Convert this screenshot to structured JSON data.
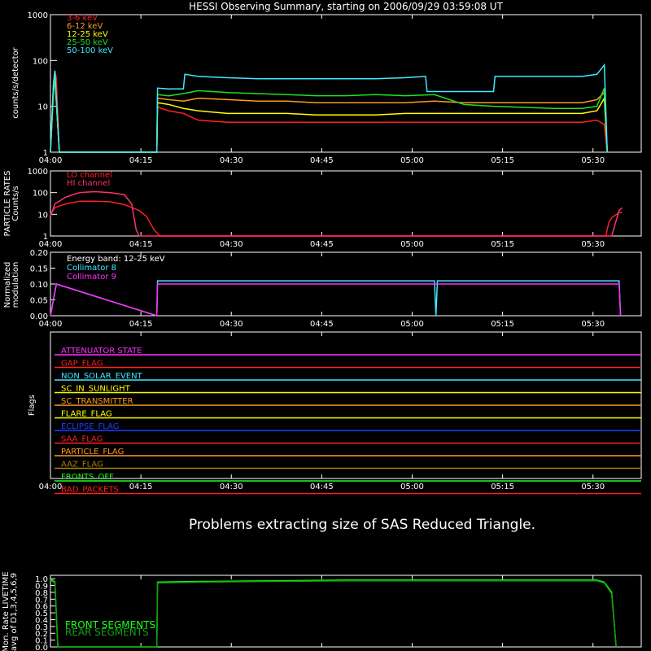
{
  "title": "HESSI Observing Summary, starting on 2006/09/29 03:59:08 UT",
  "message": "Problems extracting size of SAS Reduced Triangle.",
  "time_axis": {
    "ticks": [
      "04:00",
      "04:15",
      "04:30",
      "04:45",
      "05:00",
      "05:15",
      "05:30"
    ],
    "start_minute": 0,
    "end_minute": 40
  },
  "chart_data": [
    {
      "type": "line",
      "panel": "count_rates",
      "ylabel": "counts/s/detector",
      "yscale": "log",
      "ylim": [
        1,
        1000
      ],
      "yticks": [
        "1",
        "10",
        "100",
        "1000"
      ],
      "series": [
        {
          "name": "3-6 keV",
          "color": "#ff2020",
          "x": [
            0,
            0.2,
            0.3,
            0.4,
            0.6,
            7.2,
            7.25,
            7.5,
            8,
            9,
            10,
            12,
            14,
            16,
            18,
            20,
            22,
            24,
            26,
            28,
            30,
            32,
            34,
            36,
            37,
            37.5,
            37.7
          ],
          "y": [
            1,
            30,
            60,
            40,
            1,
            1,
            10,
            9,
            8,
            7,
            5,
            4.5,
            4.5,
            4.5,
            4.5,
            4.5,
            4.5,
            4.5,
            4.5,
            4.5,
            4.5,
            4.5,
            4.5,
            4.5,
            5,
            4,
            1
          ]
        },
        {
          "name": "6-12 keV",
          "color": "#ff9a20",
          "x": [
            0,
            0.2,
            0.3,
            0.6,
            7.2,
            7.25,
            8,
            9,
            10,
            12,
            14,
            16,
            18,
            20,
            22,
            24,
            26,
            28,
            30,
            32,
            34,
            36,
            37,
            37.5,
            37.7
          ],
          "y": [
            1,
            25,
            50,
            1,
            1,
            15,
            14,
            13,
            15,
            14,
            13,
            13,
            12,
            12,
            12,
            12,
            13,
            12,
            12,
            12,
            12,
            12,
            14,
            20,
            1
          ]
        },
        {
          "name": "12-25 keV",
          "color": "#ffff00",
          "x": [
            0,
            0.2,
            0.3,
            0.6,
            7.2,
            7.25,
            8,
            9,
            10,
            12,
            14,
            16,
            18,
            20,
            22,
            24,
            26,
            28,
            30,
            32,
            34,
            36,
            37,
            37.5,
            37.7
          ],
          "y": [
            1,
            20,
            40,
            1,
            1,
            12,
            11,
            9,
            8,
            7,
            7,
            7,
            6.5,
            6.5,
            6.5,
            7,
            7,
            7,
            7,
            7,
            7,
            7,
            8,
            15,
            1
          ]
        },
        {
          "name": "25-50 keV",
          "color": "#20e020",
          "x": [
            0,
            0.2,
            0.3,
            0.6,
            7.2,
            7.25,
            8,
            9,
            10,
            12,
            14,
            16,
            18,
            20,
            22,
            24,
            26,
            28,
            30,
            32,
            34,
            36,
            37,
            37.5,
            37.7
          ],
          "y": [
            1,
            20,
            45,
            1,
            1,
            18,
            17,
            19,
            22,
            20,
            19,
            18,
            17,
            17,
            18,
            17,
            18,
            11,
            10,
            9.5,
            9,
            9,
            10,
            25,
            1
          ]
        },
        {
          "name": "50-100 keV",
          "color": "#40e8ff",
          "x": [
            0,
            0.2,
            0.3,
            0.6,
            7.2,
            7.25,
            8,
            9,
            9.1,
            10,
            12,
            14,
            16,
            18,
            20,
            22,
            24,
            25.4,
            25.5,
            30,
            30.1,
            32,
            34,
            36,
            37,
            37.5,
            37.7
          ],
          "y": [
            1,
            30,
            60,
            1,
            1,
            25,
            24,
            24,
            50,
            45,
            42,
            40,
            40,
            40,
            40,
            40,
            42,
            45,
            21,
            21,
            45,
            45,
            45,
            45,
            50,
            80,
            1
          ]
        }
      ]
    },
    {
      "type": "line",
      "panel": "particle_rates",
      "ylabel": "PARTICLE RATES Counts/s",
      "yscale": "log",
      "ylim": [
        1,
        1000
      ],
      "yticks": [
        "1",
        "10",
        "100",
        "1000"
      ],
      "series": [
        {
          "name": "LO channel",
          "color": "#ff2020",
          "x": [
            0,
            0.3,
            1,
            2,
            3,
            4,
            5,
            6,
            6.5,
            7,
            7.4,
            7.6,
            37.6,
            37.8,
            38,
            38.5,
            38.7
          ],
          "y": [
            10,
            20,
            30,
            40,
            40,
            38,
            28,
            15,
            8,
            2,
            1,
            1,
            1,
            4,
            7,
            12,
            12
          ]
        },
        {
          "name": "HI channel",
          "color": "#ff3070",
          "x": [
            0,
            0.3,
            1,
            1.5,
            2,
            3,
            4,
            4.5,
            5,
            5.5,
            5.8,
            6,
            38,
            38.5,
            38.7
          ],
          "y": [
            8,
            30,
            60,
            80,
            100,
            110,
            100,
            90,
            80,
            30,
            2,
            1,
            1,
            15,
            20
          ]
        }
      ]
    },
    {
      "type": "line",
      "panel": "modulation",
      "ylabel": "Normalized modulation",
      "ylim": [
        0,
        0.2
      ],
      "yticks": [
        "0.00",
        "0.05",
        "0.10",
        "0.15",
        "0.20"
      ],
      "annotation": "Energy band: 12-25 keV",
      "series": [
        {
          "name": "Collimator 8",
          "color": "#40e8ff",
          "x": [
            0,
            0.4,
            7.2,
            7.25,
            10,
            15,
            20,
            25,
            26,
            26.1,
            26.2,
            30,
            35,
            38.5,
            38.6
          ],
          "y": [
            0,
            0.1,
            0,
            0.11,
            0.11,
            0.11,
            0.11,
            0.11,
            0.11,
            0,
            0.11,
            0.11,
            0.11,
            0.11,
            0
          ]
        },
        {
          "name": "Collimator 9",
          "color": "#ff30ff",
          "x": [
            0,
            0.4,
            7.2,
            7.25,
            10,
            15,
            20,
            25,
            30,
            35,
            38.5,
            38.6
          ],
          "y": [
            0,
            0.1,
            0,
            0.1,
            0.1,
            0.1,
            0.1,
            0.1,
            0.1,
            0.1,
            0.1,
            0
          ]
        }
      ]
    },
    {
      "type": "line",
      "panel": "flags",
      "ylabel": "Flags",
      "series": [
        {
          "name": "ATTENUATOR STATE",
          "color": "#ff30ff",
          "x": [
            0,
            38.7
          ],
          "y": [
            0,
            0
          ]
        },
        {
          "name": "SAA_FLAG",
          "color": "#ff2020",
          "x": [
            0,
            9,
            9.01,
            38.7
          ],
          "y": [
            1,
            1,
            0,
            0
          ]
        },
        {
          "name": "PARTICLE_FLAG",
          "color": "#ff9a20",
          "x": [
            0,
            9.3,
            9.31,
            38.2,
            38.21,
            38.7
          ],
          "y": [
            1,
            1,
            0,
            0,
            1,
            1
          ]
        },
        {
          "name": "ECLIPSE_FLAG",
          "color": "#2040ff",
          "x": [
            0,
            5.5,
            5.51,
            25,
            25.01,
            38.7
          ],
          "y": [
            1,
            1,
            0,
            0,
            1,
            1
          ]
        },
        {
          "name": "SC_TRANSMITTER",
          "color": "#ff9a20",
          "x": [
            0,
            25,
            25.01,
            26,
            26.01,
            26.2,
            26.21,
            28,
            28.01,
            38.7
          ],
          "y": [
            0,
            0,
            1,
            1,
            0,
            0,
            1,
            1,
            0,
            0
          ]
        },
        {
          "name": "SC_IN_SUNLIGHT",
          "color": "#ffff00",
          "x": [
            0,
            5.3,
            5.31,
            25,
            25.01,
            38.7
          ],
          "y": [
            0,
            0,
            1,
            1,
            0,
            0
          ]
        },
        {
          "name": "GAP_FLAG",
          "color": "#ff2020",
          "x": [
            0,
            9.8,
            9.81,
            38.5,
            38.51,
            38.7
          ],
          "y": [
            1,
            1,
            0,
            0,
            1,
            1
          ]
        }
      ]
    },
    {
      "type": "line",
      "panel": "livetime",
      "ylabel": "Mon. Rate LIVETIME avg of D1,3,4,5,6,9",
      "ylim": [
        0,
        1.05
      ],
      "yticks": [
        "0.0",
        "0.1",
        "0.2",
        "0.3",
        "0.4",
        "0.5",
        "0.6",
        "0.7",
        "0.8",
        "0.9",
        "1.0"
      ],
      "series": [
        {
          "name": "FRONT SEGMENTS",
          "color": "#20ff20",
          "x": [
            0,
            0.3,
            0.5,
            7.2,
            7.25,
            10,
            15,
            20,
            25,
            30,
            35,
            37,
            37.5,
            38,
            38.3
          ],
          "y": [
            1,
            0.95,
            0,
            0,
            0.95,
            0.96,
            0.97,
            0.98,
            0.98,
            0.98,
            0.98,
            0.98,
            0.95,
            0.8,
            0
          ]
        },
        {
          "name": "REAR SEGMENTS",
          "color": "#10a010",
          "x": [
            0,
            0.3,
            0.5,
            7.2,
            7.25,
            10,
            15,
            20,
            25,
            30,
            35,
            37,
            37.5,
            38,
            38.3
          ],
          "y": [
            0.98,
            0.94,
            0,
            0,
            0.94,
            0.95,
            0.96,
            0.97,
            0.97,
            0.97,
            0.97,
            0.97,
            0.94,
            0.78,
            0
          ]
        }
      ]
    }
  ],
  "flag_labels": [
    "ATTENUATOR STATE",
    "GAP_FLAG",
    "NON_SOLAR_EVENT",
    "SC_IN_SUNLIGHT",
    "SC_TRANSMITTER",
    "FLARE_FLAG",
    "ECLIPSE_FLAG",
    "SAA_FLAG",
    "PARTICLE_FLAG",
    "AAZ_FLAG",
    "FRONTS_OFF",
    "BAD_PACKETS"
  ],
  "flag_colors": [
    "#ff30ff",
    "#ff2020",
    "#40e8ff",
    "#ffff00",
    "#ff9a20",
    "#ffff00",
    "#2040ff",
    "#ff2020",
    "#ff9a20",
    "#a08000",
    "#20ff20",
    "#ff2020"
  ]
}
